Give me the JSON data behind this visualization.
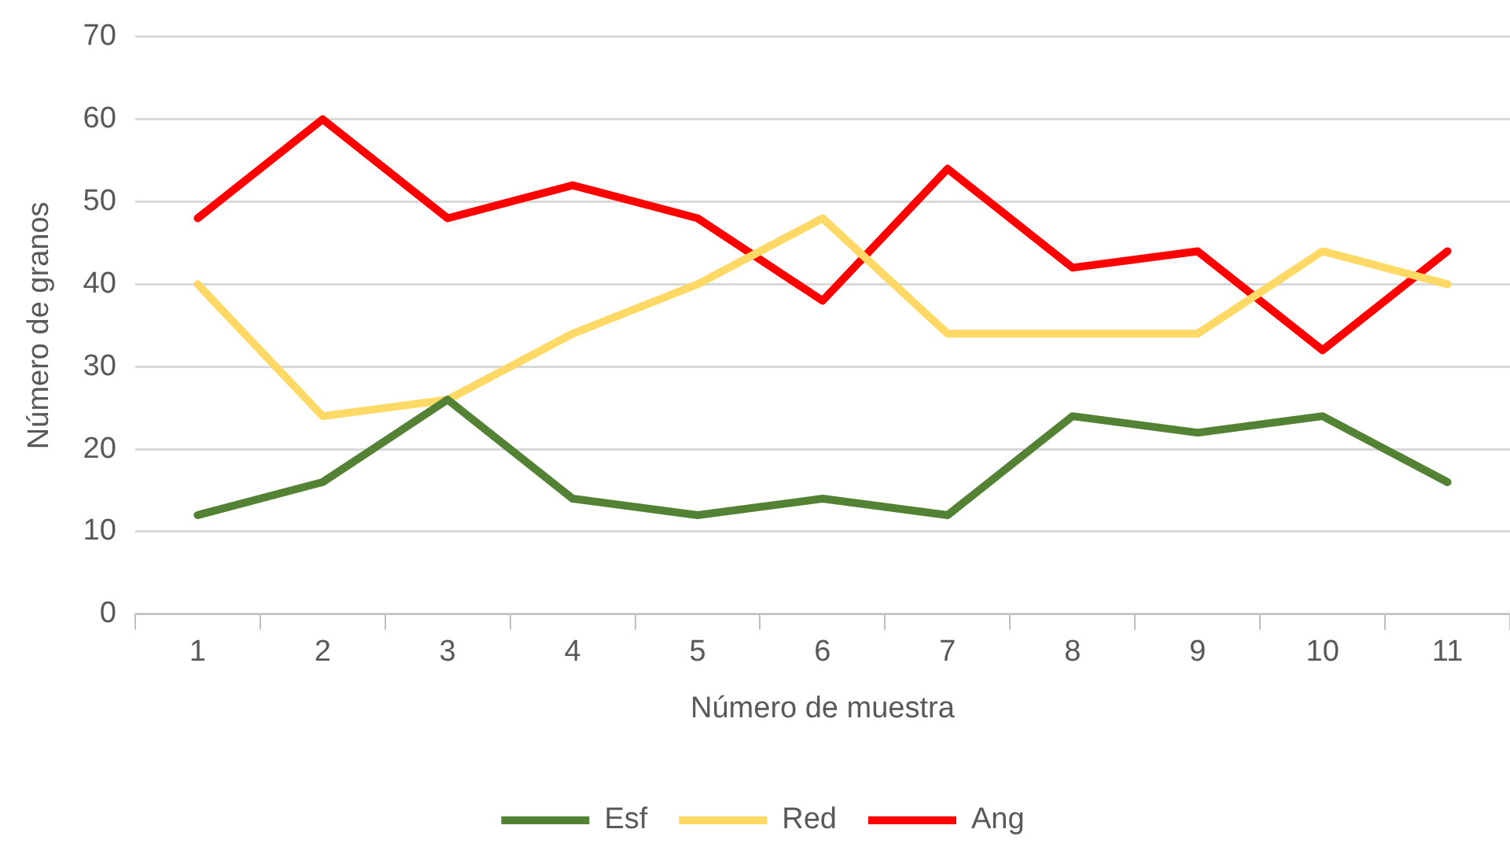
{
  "chart_data": {
    "type": "line",
    "xlabel": "Número de muestra",
    "ylabel": "Número de granos",
    "categories": [
      "1",
      "2",
      "3",
      "4",
      "5",
      "6",
      "7",
      "8",
      "9",
      "10",
      "11"
    ],
    "series": [
      {
        "name": "Esf",
        "color": "#548235",
        "values": [
          12,
          16,
          26,
          14,
          12,
          14,
          12,
          24,
          22,
          24,
          16
        ]
      },
      {
        "name": "Red",
        "color": "#ffd966",
        "values": [
          40,
          24,
          26,
          34,
          40,
          48,
          34,
          34,
          34,
          44,
          40
        ]
      },
      {
        "name": "Ang",
        "color": "#ff0000",
        "values": [
          48,
          60,
          48,
          52,
          48,
          38,
          54,
          42,
          44,
          32,
          44
        ]
      }
    ],
    "ylim": [
      0,
      70
    ],
    "yticks": [
      0,
      10,
      20,
      30,
      40,
      50,
      60,
      70
    ],
    "grid": "y",
    "legend": "bottom",
    "marker": "none",
    "line_style": "solid"
  }
}
